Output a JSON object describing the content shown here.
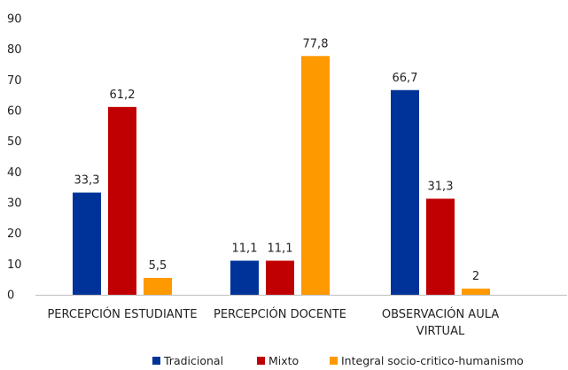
{
  "chart_data": {
    "type": "bar",
    "title": "",
    "xlabel": "",
    "ylabel": "",
    "ylim": [
      0,
      90
    ],
    "yticks": [
      0,
      10,
      20,
      30,
      40,
      50,
      60,
      70,
      80,
      90
    ],
    "grid": false,
    "legend_position": "bottom",
    "categories": [
      [
        "PERCEPCIÓN ESTUDIANTE"
      ],
      [
        "PERCEPCIÓN DOCENTE"
      ],
      [
        "OBSERVACIÓN AULA",
        "VIRTUAL"
      ]
    ],
    "series": [
      {
        "name": "Tradicional",
        "color": "#003399",
        "values": [
          33.3,
          11.1,
          66.7
        ],
        "labels": [
          "33,3",
          "11,1",
          "66,7"
        ]
      },
      {
        "name": "Mixto",
        "color": "#C00000",
        "values": [
          61.2,
          11.1,
          31.3
        ],
        "labels": [
          "61,2",
          "11,1",
          "31,3"
        ]
      },
      {
        "name": "Integral socio-critico-humanismo",
        "color": "#FF9900",
        "values": [
          5.5,
          77.8,
          2
        ],
        "labels": [
          "5,5",
          "77,8",
          "2"
        ]
      }
    ]
  }
}
